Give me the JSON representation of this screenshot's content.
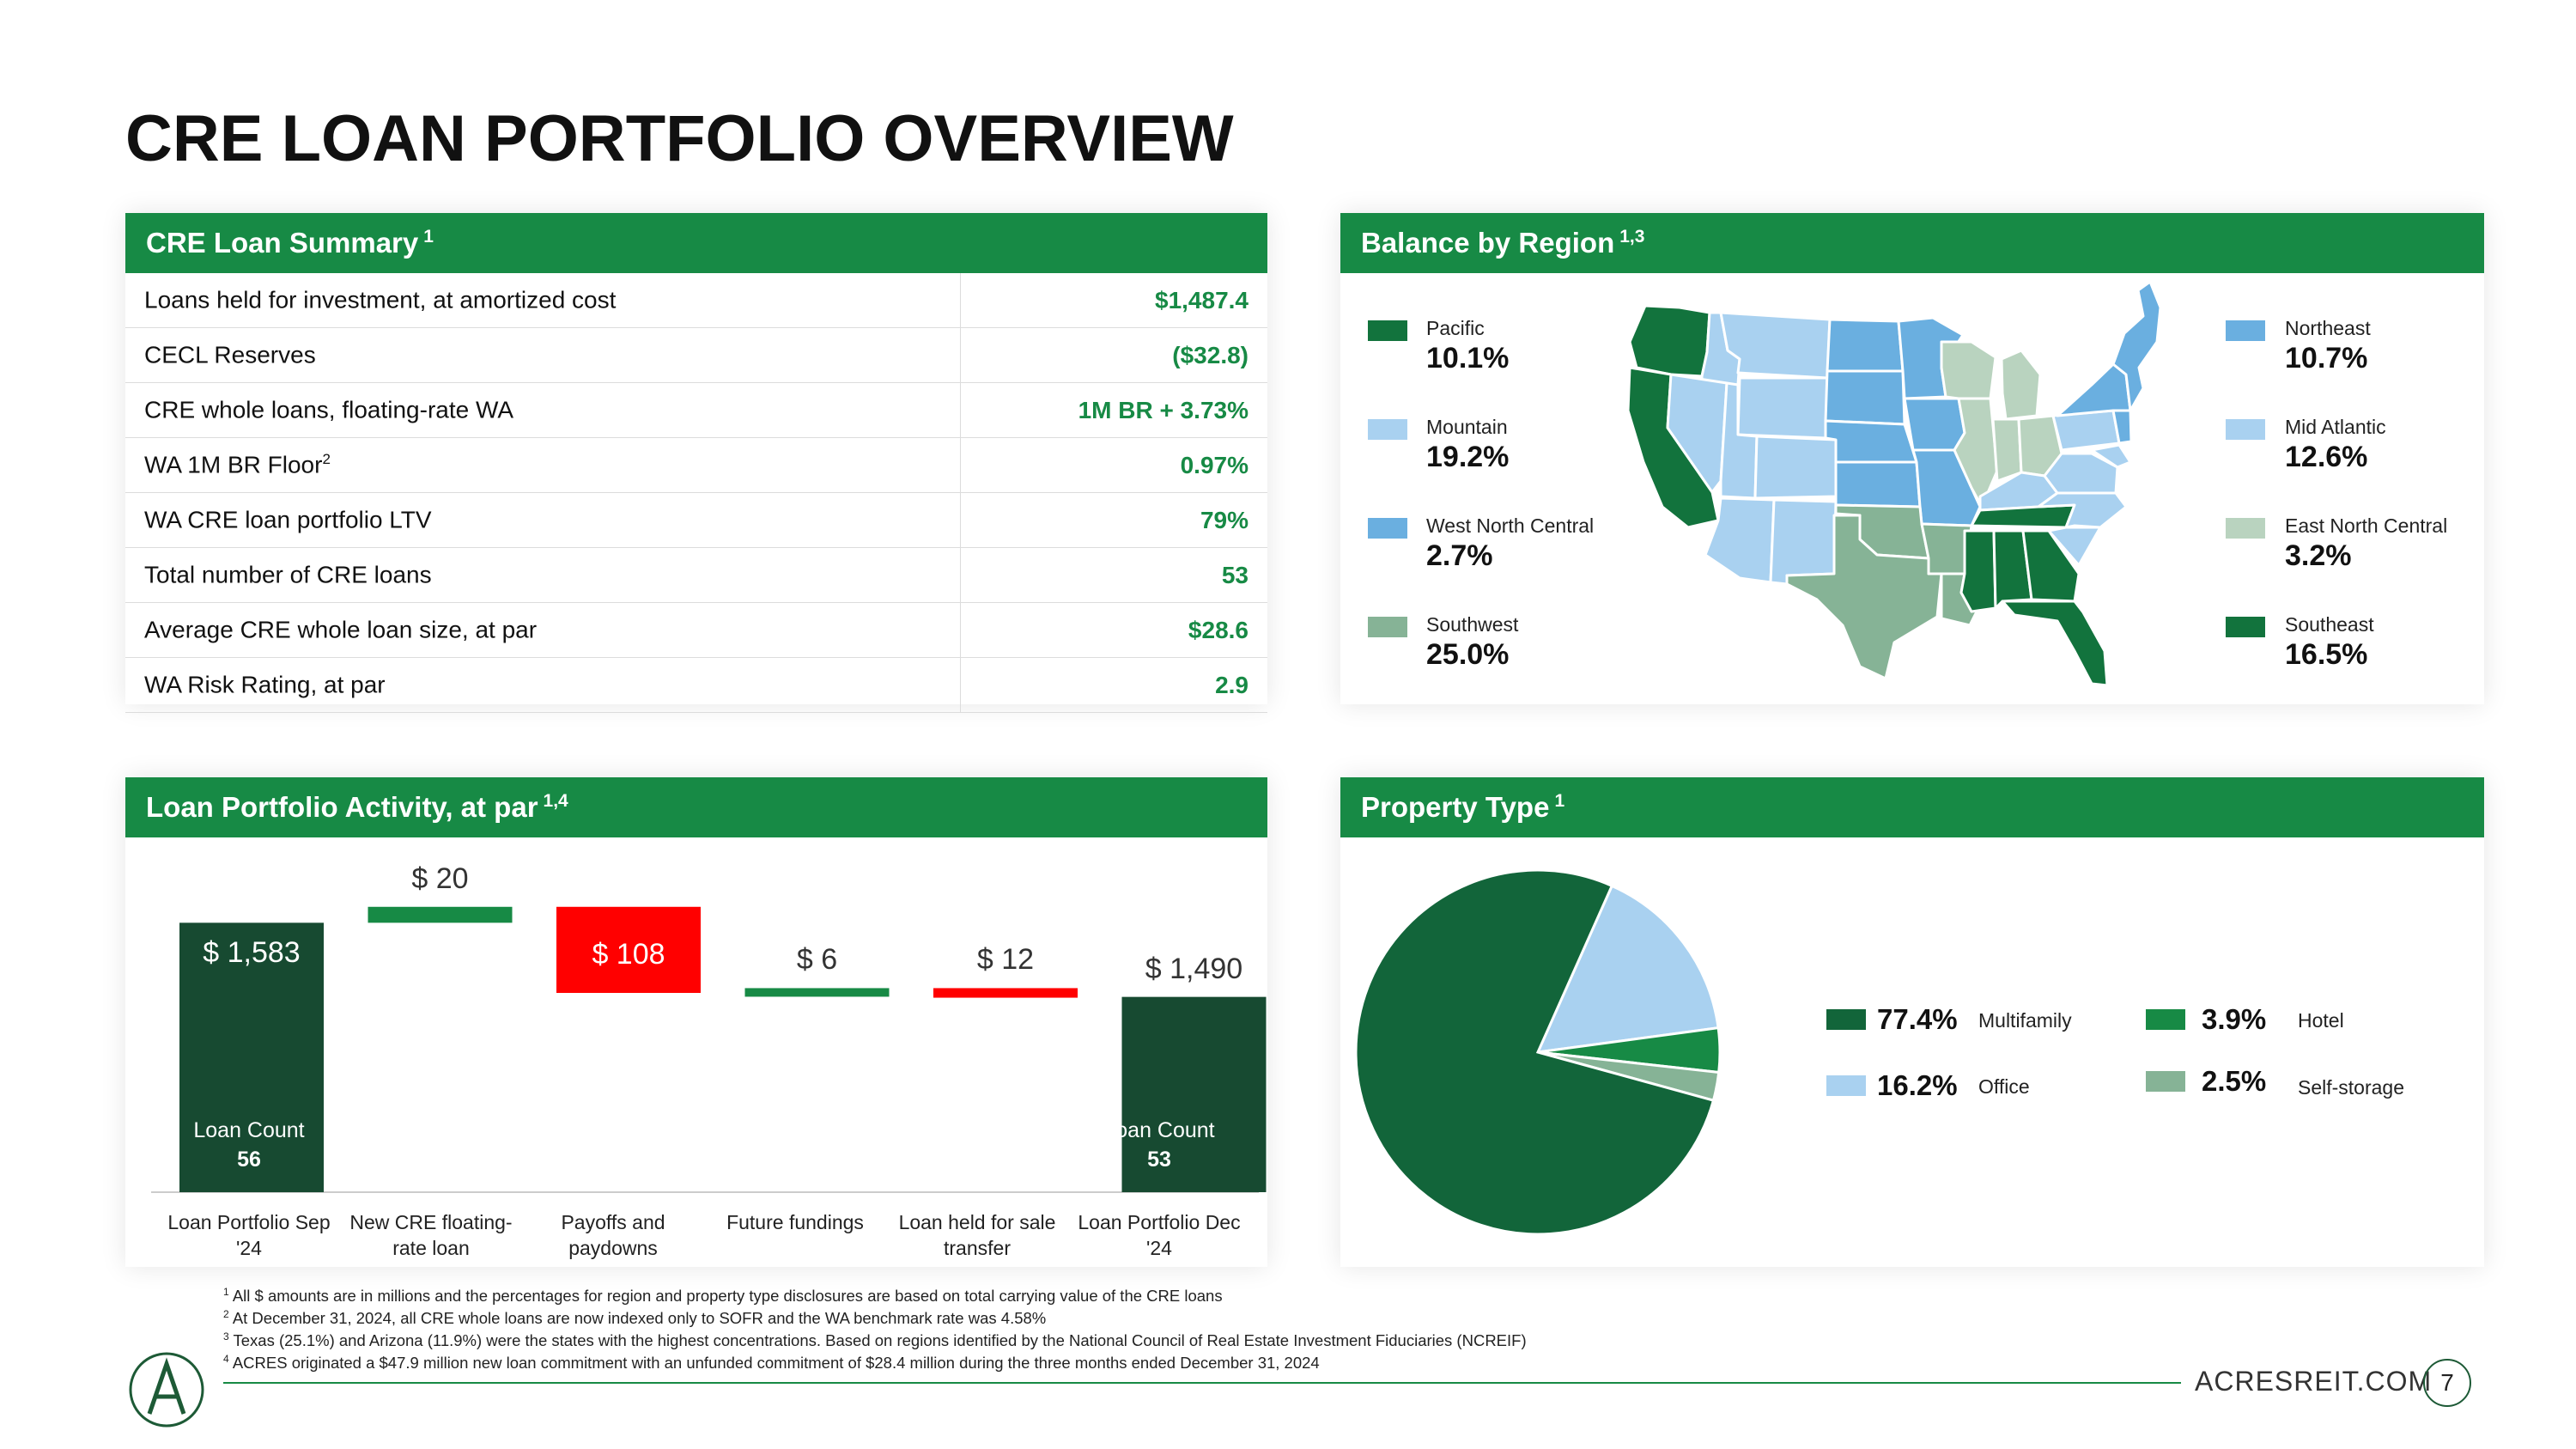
{
  "page": {
    "title": "CRE LOAN PORTFOLIO OVERVIEW",
    "website": "ACRESREIT.COM",
    "page_number": "7"
  },
  "summary": {
    "header": "CRE Loan Summary",
    "header_note": "1",
    "rows": [
      {
        "label": "Loans held for investment, at amortized cost",
        "sup": "",
        "value": "$1,487.4"
      },
      {
        "label": "CECL Reserves",
        "sup": "",
        "value": "($32.8)"
      },
      {
        "label": "CRE whole loans, floating-rate WA",
        "sup": "",
        "value": "1M BR + 3.73%"
      },
      {
        "label": "WA 1M BR Floor",
        "sup": "2",
        "value": "0.97%"
      },
      {
        "label": "WA CRE loan portfolio LTV",
        "sup": "",
        "value": "79%"
      },
      {
        "label": "Total number of CRE loans",
        "sup": "",
        "value": "53"
      },
      {
        "label": "Average CRE whole loan size, at par",
        "sup": "",
        "value": "$28.6"
      },
      {
        "label": "WA Risk Rating, at par",
        "sup": "",
        "value": "2.9"
      }
    ]
  },
  "region": {
    "header": "Balance by Region",
    "header_note": "1,3",
    "items": [
      {
        "name": "Pacific",
        "value": "10.1%",
        "color": "#12733d"
      },
      {
        "name": "Mountain",
        "value": "19.2%",
        "color": "#a9d1f0"
      },
      {
        "name": "West North Central",
        "value": "2.7%",
        "color": "#6aafe0"
      },
      {
        "name": "Southwest",
        "value": "25.0%",
        "color": "#86b396"
      },
      {
        "name": "Northeast",
        "value": "10.7%",
        "color": "#6aafe0"
      },
      {
        "name": "Mid Atlantic",
        "value": "12.6%",
        "color": "#a9d1f0"
      },
      {
        "name": "East North Central",
        "value": "3.2%",
        "color": "#b9d3bf"
      },
      {
        "name": "Southeast",
        "value": "16.5%",
        "color": "#12733d"
      }
    ]
  },
  "activity": {
    "header": "Loan Portfolio Activity, at par",
    "header_note": "1,4",
    "loan_count_label": "Loan Count",
    "start_count": "56",
    "end_count": "53"
  },
  "property": {
    "header": "Property Type",
    "header_note": "1",
    "items": [
      {
        "name": "Multifamily",
        "value": "77.4%",
        "color": "#12653a",
        "pct": 77.4
      },
      {
        "name": "Office",
        "value": "16.2%",
        "color": "#a9d1f0",
        "pct": 16.2
      },
      {
        "name": "Hotel",
        "value": "3.9%",
        "color": "#178a45",
        "pct": 3.9
      },
      {
        "name": "Self-storage",
        "value": "2.5%",
        "color": "#86b396",
        "pct": 2.5
      }
    ]
  },
  "chart_data": {
    "type": "bar",
    "subtype": "waterfall",
    "title": "Loan Portfolio Activity, at par",
    "categories": [
      "Loan Portfolio Sep '24",
      "New CRE floating-rate loan",
      "Payoffs and paydowns",
      "Future fundings",
      "Loan held for sale transfer",
      "Loan Portfolio Dec '24"
    ],
    "values": [
      1583,
      20,
      -108,
      6,
      -12,
      1490
    ],
    "labels": [
      "$ 1,583",
      "$ 20",
      "$ 108",
      "$ 6",
      "$ 12",
      "$ 1,490"
    ],
    "loan_counts": {
      "start": 56,
      "end": 53
    },
    "colors": {
      "total": "#174a31",
      "increase": "#178a45",
      "decrease": "#ff0000"
    },
    "xlabel": "",
    "ylabel": ""
  },
  "footnotes": [
    {
      "num": "1",
      "text": "All $ amounts are in millions and the percentages for region and property type disclosures are based on total carrying value of the CRE loans"
    },
    {
      "num": "2",
      "text": "At December 31, 2024, all CRE whole loans are now indexed only to SOFR and the WA benchmark rate was 4.58%"
    },
    {
      "num": "3",
      "text": "Texas (25.1%) and Arizona (11.9%) were the states with the highest concentrations.  Based on regions identified by the National Council of Real Estate Investment Fiduciaries (NCREIF)"
    },
    {
      "num": "4",
      "text": "ACRES originated a $47.9 million new loan commitment with an unfunded commitment of $28.4 million during the three months ended December 31, 2024"
    }
  ]
}
